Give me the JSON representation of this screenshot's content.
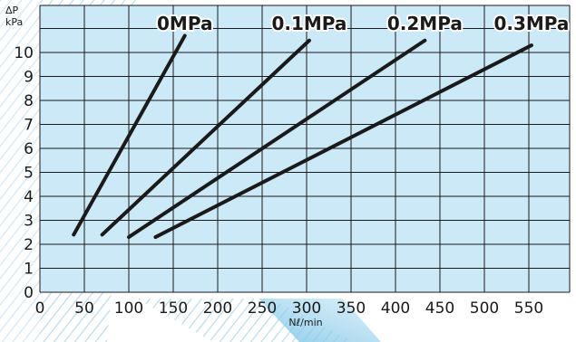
{
  "chart_data": {
    "type": "line",
    "xlabel": "Nℓ/min",
    "ylabel_symbol": "ΔP",
    "ylabel_unit": "kPa",
    "xlim": [
      0,
      600
    ],
    "ylim": [
      0,
      11.6
    ],
    "x_ticks": [
      0,
      50,
      100,
      150,
      200,
      250,
      300,
      350,
      400,
      450,
      500,
      550
    ],
    "y_ticks": [
      0,
      1,
      2,
      3,
      4,
      5,
      6,
      7,
      8,
      9,
      10
    ],
    "grid": true,
    "plot_background": "#cce9f7",
    "series": [
      {
        "name": "0MPa",
        "x": [
          38,
          163
        ],
        "y": [
          2.4,
          10.7
        ]
      },
      {
        "name": "0.1MPa",
        "x": [
          70,
          303
        ],
        "y": [
          2.4,
          10.5
        ]
      },
      {
        "name": "0.2MPa",
        "x": [
          100,
          433
        ],
        "y": [
          2.3,
          10.5
        ]
      },
      {
        "name": "0.3MPa",
        "x": [
          130,
          553
        ],
        "y": [
          2.3,
          10.3
        ]
      }
    ]
  }
}
